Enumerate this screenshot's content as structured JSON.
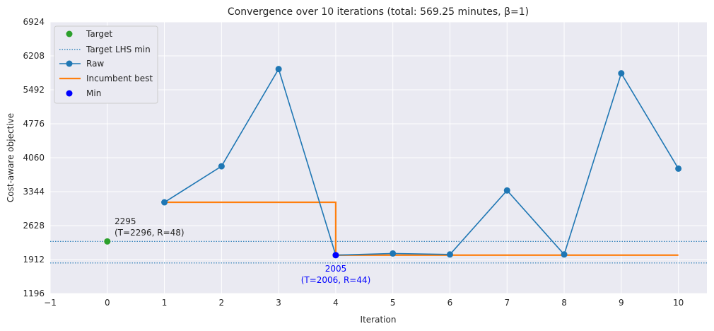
{
  "chart_data": {
    "type": "line",
    "title": "Convergence over 10 iterations (total: 569.25 minutes, β=1)",
    "xlabel": "Iteration",
    "ylabel": "Cost-aware objective",
    "xlim": [
      -1,
      10.5
    ],
    "ylim": [
      1196,
      6924
    ],
    "xticks": [
      -1,
      0,
      1,
      2,
      3,
      4,
      5,
      6,
      7,
      8,
      9,
      10
    ],
    "xtick_labels": [
      "−1",
      "0",
      "1",
      "2",
      "3",
      "4",
      "5",
      "6",
      "7",
      "8",
      "9",
      "10"
    ],
    "yticks": [
      1196,
      1912,
      2628,
      3344,
      4060,
      4776,
      5492,
      6208,
      6924
    ],
    "yticks_labels": [
      "1196",
      "1912",
      "2628",
      "3344",
      "4060",
      "4776",
      "5492",
      "6208",
      "6924"
    ],
    "grid": true,
    "legend_position": "top-left",
    "colors": {
      "background": "#eaeaf2",
      "grid": "#ffffff",
      "raw": "#1f77b4",
      "incumbent": "#ff7f0e",
      "target": "#2ca02c",
      "min": "#0000ff",
      "target_lhs_line": "#1f77b4"
    },
    "series": [
      {
        "name": "Raw",
        "x": [
          1,
          2,
          3,
          4,
          5,
          6,
          7,
          8,
          9,
          10
        ],
        "y": [
          3120,
          3880,
          5930,
          2005,
          2040,
          2020,
          3370,
          2020,
          5840,
          3830
        ]
      },
      {
        "name": "Incumbent best",
        "x": [
          1,
          2,
          3,
          4,
          4,
          5,
          6,
          7,
          8,
          9,
          10
        ],
        "y": [
          3120,
          3120,
          3120,
          3120,
          2005,
          2005,
          2005,
          2005,
          2005,
          2005,
          2005
        ]
      }
    ],
    "target_point": {
      "name": "Target",
      "x": 0,
      "y": 2295
    },
    "min_point": {
      "name": "Min",
      "x": 4,
      "y": 2005
    },
    "hlines": [
      {
        "name": "Target LHS min",
        "y": 2295
      },
      {
        "name": "Target LHS min",
        "y": 1840
      }
    ],
    "annotations": [
      {
        "lines": [
          "2295",
          "(T=2296, R=48)"
        ],
        "color": "#262626"
      },
      {
        "lines": [
          "2005",
          "(T=2006, R=44)"
        ],
        "color": "#0000ff"
      }
    ],
    "legend": [
      "Target",
      "Target LHS min",
      "Raw",
      "Incumbent best",
      "Min"
    ]
  }
}
